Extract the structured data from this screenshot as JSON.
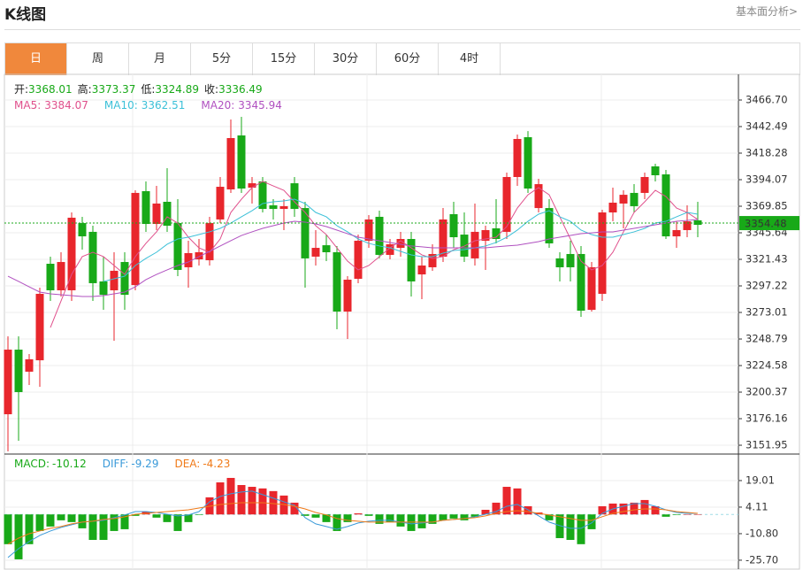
{
  "header": {
    "title": "K线图",
    "link": "基本面分析>"
  },
  "tabs": [
    "日",
    "周",
    "月",
    "5分",
    "15分",
    "30分",
    "60分",
    "4时"
  ],
  "active_tab": 0,
  "chart_data": [
    {
      "type": "candlestick",
      "info": [
        {
          "label": "开:",
          "value": 3368.01
        },
        {
          "label": "高:",
          "value": 3373.37
        },
        {
          "label": "低:",
          "value": 3324.89
        },
        {
          "label": "收:",
          "value": 3336.49
        }
      ],
      "open": [
        3180.2,
        3239.1,
        3219.0,
        3229.4,
        3317.4,
        3293.2,
        3293.2,
        3354.5,
        3346.5,
        3301.3,
        3293.2,
        3319.0,
        3298.0,
        3383.6,
        3353.7,
        3373.9,
        3354.5,
        3314.2,
        3321.4,
        3320.6,
        3357.8,
        3385.2,
        3434.4,
        3386.8,
        3392.5,
        3370.7,
        3367.4,
        3390.8,
        3368.2,
        3323.9,
        3334.3,
        3327.9,
        3273.8,
        3303.7,
        3338.4,
        3360.2,
        3325.5,
        3331.9,
        3340.0,
        3307.7,
        3314.2,
        3323.9,
        3362.6,
        3344.0,
        3322.3,
        3338.4,
        3349.7,
        3346.5,
        3396.5,
        3432.8,
        3368.2,
        3368.2,
        3322.3,
        3326.3,
        3326.3,
        3275.4,
        3290.0,
        3364.2,
        3372.3,
        3382.0,
        3382.0,
        3406.2,
        3398.9,
        3342.4,
        3348.1,
        3357.0
      ],
      "high": [
        3251.2,
        3251.2,
        3235.1,
        3295.6,
        3323.9,
        3327.9,
        3364.2,
        3360.2,
        3352.1,
        3323.9,
        3327.9,
        3327.9,
        3384.4,
        3392.5,
        3388.4,
        3404.6,
        3376.3,
        3338.4,
        3340.0,
        3360.2,
        3396.5,
        3448.9,
        3451.4,
        3396.5,
        3396.5,
        3376.3,
        3376.3,
        3396.5,
        3373.9,
        3348.1,
        3344.0,
        3333.5,
        3306.1,
        3344.0,
        3361.8,
        3365.8,
        3340.0,
        3346.5,
        3346.5,
        3323.9,
        3335.2,
        3368.2,
        3373.9,
        3364.2,
        3372.3,
        3352.1,
        3376.3,
        3400.5,
        3435.2,
        3438.4,
        3394.9,
        3376.3,
        3327.9,
        3338.4,
        3333.5,
        3319.0,
        3366.6,
        3386.8,
        3384.4,
        3390.0,
        3400.5,
        3408.6,
        3402.9,
        3356.1,
        3370.7,
        3373.9
      ],
      "low": [
        3146.3,
        3156.0,
        3206.8,
        3205.2,
        3283.5,
        3287.5,
        3283.5,
        3330.3,
        3283.5,
        3275.4,
        3247.2,
        3275.4,
        3293.2,
        3346.5,
        3348.1,
        3346.5,
        3306.1,
        3295.6,
        3315.8,
        3315.8,
        3354.5,
        3382.0,
        3382.0,
        3372.3,
        3364.2,
        3357.8,
        3348.1,
        3360.2,
        3295.6,
        3315.8,
        3319.8,
        3257.7,
        3248.8,
        3299.7,
        3331.9,
        3322.3,
        3321.4,
        3323.9,
        3287.5,
        3285.1,
        3311.0,
        3319.0,
        3331.9,
        3319.0,
        3315.8,
        3311.8,
        3336.0,
        3340.0,
        3388.4,
        3382.0,
        3364.2,
        3331.9,
        3301.3,
        3301.3,
        3269.0,
        3273.8,
        3283.5,
        3356.1,
        3349.7,
        3364.2,
        3376.3,
        3392.5,
        3340.0,
        3331.9,
        3341.6,
        3341.6
      ],
      "close": [
        3239.1,
        3200.4,
        3230.3,
        3290.0,
        3293.2,
        3319.0,
        3359.4,
        3342.4,
        3299.7,
        3289.1,
        3311.0,
        3289.1,
        3382.0,
        3353.7,
        3372.3,
        3352.1,
        3311.8,
        3327.1,
        3327.9,
        3354.5,
        3387.6,
        3432.0,
        3386.0,
        3390.8,
        3367.4,
        3367.4,
        3369.9,
        3367.4,
        3322.3,
        3331.9,
        3327.9,
        3273.8,
        3302.9,
        3338.4,
        3357.8,
        3325.5,
        3335.2,
        3340.0,
        3301.3,
        3315.8,
        3326.3,
        3357.8,
        3341.6,
        3323.9,
        3346.5,
        3348.1,
        3340.0,
        3396.5,
        3431.2,
        3386.0,
        3390.0,
        3336.0,
        3314.2,
        3314.2,
        3274.6,
        3314.2,
        3364.2,
        3373.1,
        3380.3,
        3369.9,
        3396.5,
        3398.1,
        3342.4,
        3348.1,
        3356.1,
        3352.9
      ],
      "up_color": "#e8262c",
      "down_color": "#18a918",
      "series": [
        {
          "name": "MA5:",
          "value": 3384.07,
          "color": "#e0508c",
          "values": [
            null,
            null,
            null,
            null,
            3259.3,
            3283.5,
            3307.7,
            3323.9,
            3327.9,
            3323.9,
            3315.8,
            3307.7,
            3323.9,
            3336.0,
            3346.5,
            3360.2,
            3354.5,
            3341.6,
            3331.9,
            3327.9,
            3340.0,
            3364.2,
            3376.3,
            3386.8,
            3392.5,
            3388.4,
            3384.4,
            3373.9,
            3364.2,
            3352.1,
            3344.0,
            3331.9,
            3319.8,
            3311.8,
            3315.8,
            3323.9,
            3331.9,
            3338.4,
            3331.9,
            3325.5,
            3322.3,
            3323.9,
            3330.3,
            3333.5,
            3338.4,
            3340.0,
            3341.6,
            3351.3,
            3368.2,
            3380.3,
            3386.8,
            3380.3,
            3360.2,
            3340.0,
            3319.8,
            3311.8,
            3315.8,
            3327.9,
            3346.5,
            3364.2,
            3373.9,
            3384.4,
            3378.7,
            3368.2,
            3364.2,
            3357.8
          ]
        },
        {
          "name": "MA10:",
          "value": 3362.51,
          "color": "#3cc0d8",
          "values": [
            null,
            null,
            null,
            null,
            null,
            null,
            null,
            null,
            null,
            3301.3,
            3303.7,
            3306.1,
            3315.8,
            3322.3,
            3327.9,
            3335.2,
            3340.0,
            3341.6,
            3344.0,
            3346.5,
            3349.7,
            3354.5,
            3360.2,
            3365.8,
            3372.3,
            3373.9,
            3374.7,
            3376.3,
            3372.3,
            3364.2,
            3360.2,
            3352.1,
            3346.5,
            3340.0,
            3336.0,
            3333.6,
            3331.9,
            3328.7,
            3325.5,
            3323.9,
            3323.9,
            3327.1,
            3329.5,
            3330.3,
            3331.9,
            3333.6,
            3336.8,
            3341.6,
            3348.1,
            3356.1,
            3362.6,
            3365.8,
            3360.2,
            3356.1,
            3348.1,
            3344.0,
            3341.6,
            3341.6,
            3344.0,
            3346.5,
            3349.7,
            3354.5,
            3356.1,
            3360.2,
            3364.2,
            3362.6
          ]
        },
        {
          "name": "MA20:",
          "value": 3345.94,
          "color": "#b050c0",
          "values": [
            3306.1,
            3301.3,
            3296.4,
            3291.6,
            3290.0,
            3289.2,
            3288.4,
            3287.5,
            3287.5,
            3288.4,
            3290.0,
            3291.6,
            3296.4,
            3302.9,
            3307.7,
            3311.8,
            3315.8,
            3319.0,
            3323.9,
            3328.7,
            3333.6,
            3338.4,
            3343.2,
            3346.5,
            3349.7,
            3352.1,
            3354.5,
            3356.1,
            3355.3,
            3353.7,
            3351.3,
            3348.1,
            3344.8,
            3341.6,
            3340.0,
            3338.4,
            3336.8,
            3335.2,
            3333.6,
            3332.8,
            3331.9,
            3331.9,
            3331.9,
            3331.9,
            3331.9,
            3331.9,
            3332.8,
            3333.6,
            3334.4,
            3336.0,
            3337.6,
            3340.0,
            3341.6,
            3343.2,
            3344.8,
            3345.6,
            3346.5,
            3346.5,
            3348.1,
            3349.7,
            3351.3,
            3352.9,
            3354.5,
            3356.1,
            3356.9,
            3357.8
          ]
        }
      ],
      "current_price": 3354.48,
      "ylim": [
        3143.9,
        3489.3
      ],
      "yticks": [
        {
          "value": 3466.7,
          "label": "3466.70"
        },
        3442.49,
        3418.28,
        3394.07,
        3369.85,
        3345.64,
        3321.43,
        3297.22,
        3273.01,
        3248.79,
        3224.58,
        3200.37,
        3176.16,
        3151.95
      ],
      "grid": true
    },
    {
      "type": "macd",
      "up_color": "#e8262c",
      "down_color": "#18a918",
      "series": [
        {
          "name": "MACD:",
          "value": -10.12,
          "color": "#18a918",
          "type": "bar",
          "values": [
            -16.7,
            -25.2,
            -16.7,
            -9.3,
            -6.8,
            -3.3,
            -4.3,
            -7.8,
            -14.3,
            -14.3,
            -9.3,
            -8.3,
            -0.8,
            1.6,
            -1.8,
            -4.3,
            -9.3,
            -4.3,
            -0.3,
            9.6,
            18.0,
            20.5,
            16.5,
            15.5,
            14.6,
            13.1,
            10.6,
            6.6,
            -0.8,
            -1.8,
            -4.3,
            -9.3,
            -4.3,
            0.6,
            -0.8,
            -5.3,
            -4.3,
            -6.8,
            -9.3,
            -7.8,
            -5.3,
            -3.3,
            -2.3,
            -3.3,
            -1.3,
            2.6,
            6.6,
            15.5,
            14.6,
            4.6,
            1.1,
            -3.3,
            -13.3,
            -14.3,
            -16.7,
            -8.3,
            4.6,
            6.1,
            6.1,
            6.6,
            8.1,
            4.6,
            -1.3,
            -0.3,
            0.1,
            0.1
          ]
        },
        {
          "name": "DIFF:",
          "value": -9.29,
          "color": "#3a9ad9",
          "type": "line",
          "values": [
            -24.2,
            -19.2,
            -15.2,
            -11.8,
            -9.3,
            -7.3,
            -5.8,
            -4.3,
            -3.8,
            -3.3,
            -1.8,
            -0.3,
            1.6,
            1.6,
            1.1,
            0.1,
            -0.8,
            -0.3,
            1.6,
            7.1,
            10.1,
            11.6,
            12.6,
            13.1,
            11.1,
            9.1,
            7.1,
            5.1,
            -1.8,
            -5.3,
            -6.8,
            -8.3,
            -6.8,
            -4.8,
            -3.8,
            -3.3,
            -3.3,
            -4.3,
            -5.3,
            -4.8,
            -4.3,
            -3.3,
            -2.8,
            -2.3,
            -1.3,
            0.1,
            1.6,
            4.6,
            5.6,
            2.6,
            -0.8,
            -4.3,
            -6.3,
            -7.8,
            -7.8,
            -4.8,
            0.6,
            3.1,
            4.6,
            6.1,
            6.1,
            4.6,
            2.6,
            1.1,
            0.6,
            0.6
          ]
        },
        {
          "name": "DEA:",
          "value": -4.23,
          "color": "#f07a18",
          "type": "line",
          "values": [
            -16.7,
            -13.3,
            -10.8,
            -9.3,
            -7.8,
            -6.8,
            -5.3,
            -4.3,
            -3.8,
            -2.8,
            -2.3,
            -1.3,
            0.1,
            0.6,
            1.1,
            1.6,
            2.1,
            2.6,
            3.6,
            4.6,
            5.6,
            6.1,
            6.6,
            6.6,
            6.6,
            6.1,
            5.6,
            4.6,
            3.1,
            1.1,
            -0.3,
            -2.3,
            -3.3,
            -3.8,
            -4.3,
            -4.3,
            -4.3,
            -4.3,
            -4.3,
            -4.3,
            -4.3,
            -3.3,
            -2.8,
            -2.3,
            -1.8,
            -0.8,
            0.6,
            1.6,
            2.1,
            1.6,
            0.6,
            -0.3,
            -1.3,
            -2.3,
            -3.3,
            -3.3,
            -1.3,
            0.6,
            1.6,
            2.6,
            3.1,
            3.1,
            2.6,
            1.6,
            1.1,
            0.6
          ]
        }
      ],
      "ylim": [
        -30.7,
        33.9
      ],
      "yticks": [
        19.01,
        4.11,
        {
          "value": -10.8,
          "label": "-10.80"
        },
        {
          "value": -25.7,
          "label": "-25.70"
        }
      ],
      "grid": true
    }
  ]
}
